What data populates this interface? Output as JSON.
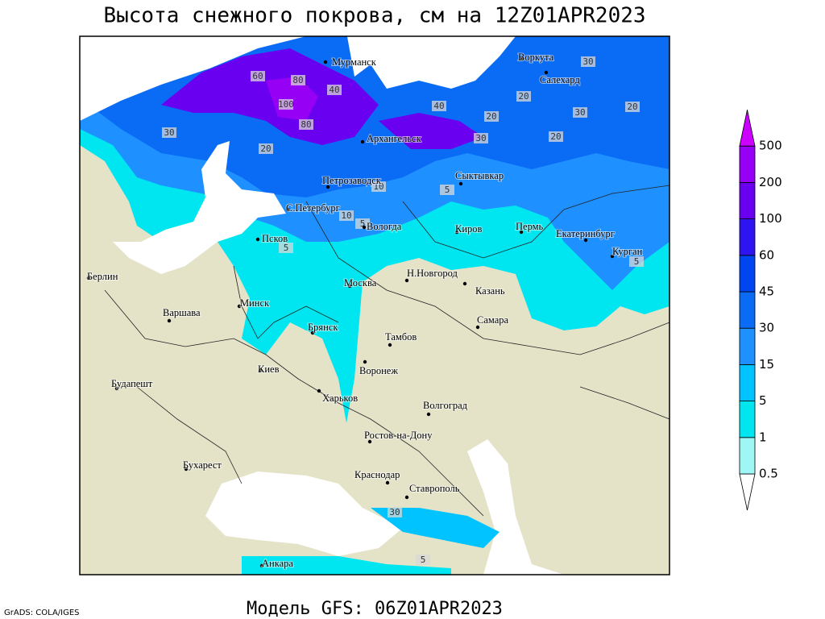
{
  "title": "Высота снежного покрова, см на 12Z01APR2023",
  "footer": "Модель GFS: 06Z01APR2023",
  "credit": "GrADS: COLA/IGES",
  "legend": {
    "levels": [
      0.5,
      1,
      5,
      15,
      30,
      45,
      60,
      100,
      200,
      500
    ],
    "colors": [
      "#ffffff",
      "#a0f5f5",
      "#00e6f0",
      "#00c3ff",
      "#1e90ff",
      "#0a6cf5",
      "#0046f0",
      "#2d14f0",
      "#6a00f0",
      "#9600f5",
      "#cc00ff"
    ]
  },
  "cities": [
    "Мурманск",
    "Воркута",
    "Салехард",
    "Архангельск",
    "Сыктывкар",
    "Петрозаводск",
    "С.Петербург",
    "Вологда",
    "Киров",
    "Пермь",
    "Екатеринбург",
    "Курган",
    "Псков",
    "Берлин",
    "Москва",
    "Н.Новгород",
    "Казань",
    "Варшава",
    "Минск",
    "Самара",
    "Брянск",
    "Тамбов",
    "Воронеж",
    "Киев",
    "Будапешт",
    "Харьков",
    "Волгоград",
    "Ростов-на-Дону",
    "Бухарест",
    "Краснодар",
    "Ставрополь",
    "Анкара"
  ],
  "contour_labels": [
    30,
    60,
    80,
    100,
    40,
    80,
    20,
    40,
    20,
    30,
    20,
    30,
    20,
    30,
    20,
    10,
    5,
    10,
    5,
    5,
    5,
    30,
    5
  ]
}
